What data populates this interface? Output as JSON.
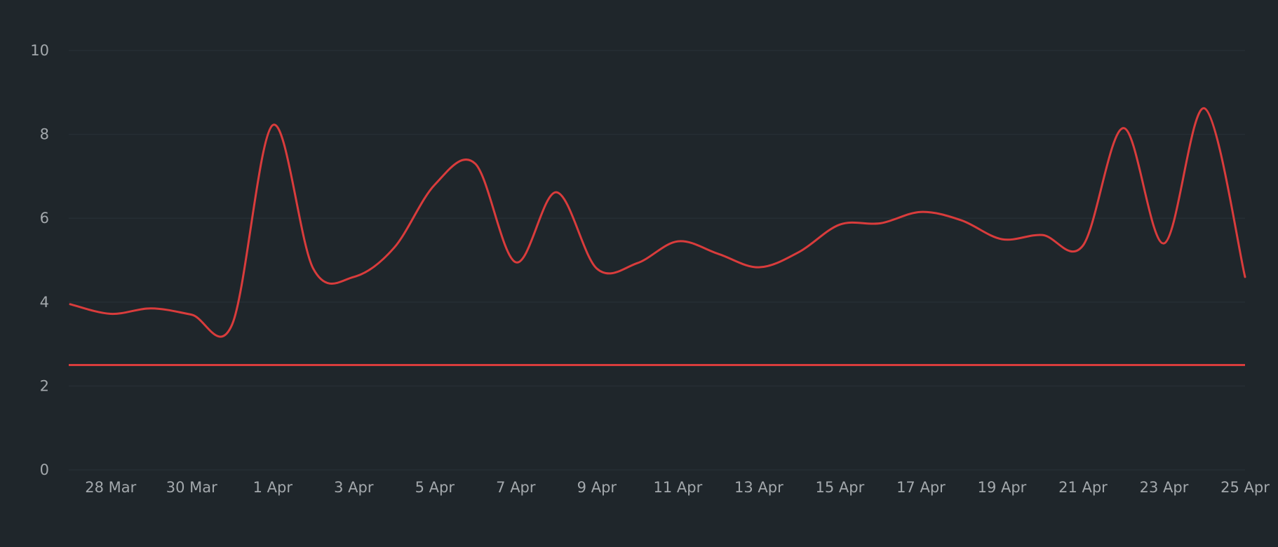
{
  "colors": {
    "background": "#1f262b",
    "grid": "#262e34",
    "tick_text": "#a3a8ac",
    "series": "#d93c3c"
  },
  "chart_data": {
    "type": "line",
    "title": "",
    "xlabel": "",
    "ylabel": "",
    "ylim": [
      0,
      10
    ],
    "yticks": [
      0,
      2,
      4,
      6,
      8,
      10
    ],
    "xlim": [
      "2024-03-27",
      "2024-04-25"
    ],
    "xticks": [
      {
        "date": "2024-03-28",
        "label": "28 Mar"
      },
      {
        "date": "2024-03-30",
        "label": "30 Mar"
      },
      {
        "date": "2024-04-01",
        "label": "1 Apr"
      },
      {
        "date": "2024-04-03",
        "label": "3 Apr"
      },
      {
        "date": "2024-04-05",
        "label": "5 Apr"
      },
      {
        "date": "2024-04-07",
        "label": "7 Apr"
      },
      {
        "date": "2024-04-09",
        "label": "9 Apr"
      },
      {
        "date": "2024-04-11",
        "label": "11 Apr"
      },
      {
        "date": "2024-04-13",
        "label": "13 Apr"
      },
      {
        "date": "2024-04-15",
        "label": "15 Apr"
      },
      {
        "date": "2024-04-17",
        "label": "17 Apr"
      },
      {
        "date": "2024-04-19",
        "label": "19 Apr"
      },
      {
        "date": "2024-04-21",
        "label": "21 Apr"
      },
      {
        "date": "2024-04-23",
        "label": "23 Apr"
      },
      {
        "date": "2024-04-25",
        "label": "25 Apr"
      }
    ],
    "grid": true,
    "series": [
      {
        "x": [
          "2024-03-27",
          "2024-03-28",
          "2024-03-29",
          "2024-03-30",
          "2024-03-31",
          "2024-04-01",
          "2024-04-02",
          "2024-04-03",
          "2024-04-04",
          "2024-04-05",
          "2024-04-06",
          "2024-04-07",
          "2024-04-08",
          "2024-04-09",
          "2024-04-10",
          "2024-04-11",
          "2024-04-12",
          "2024-04-13",
          "2024-04-14",
          "2024-04-15",
          "2024-04-16",
          "2024-04-17",
          "2024-04-18",
          "2024-04-19",
          "2024-04-20",
          "2024-04-21",
          "2024-04-22",
          "2024-04-23",
          "2024-04-24",
          "2024-04-25"
        ],
        "y": [
          3.95,
          3.72,
          3.85,
          3.7,
          3.47,
          8.22,
          4.8,
          4.6,
          5.3,
          6.8,
          7.3,
          4.95,
          6.62,
          4.8,
          4.93,
          5.45,
          5.15,
          4.83,
          5.2,
          5.85,
          5.88,
          6.15,
          5.95,
          5.5,
          5.6,
          5.35,
          8.15,
          5.4,
          8.62,
          4.6
        ]
      }
    ],
    "reference_lines": [
      {
        "axis": "y",
        "value": 2.5
      }
    ]
  }
}
